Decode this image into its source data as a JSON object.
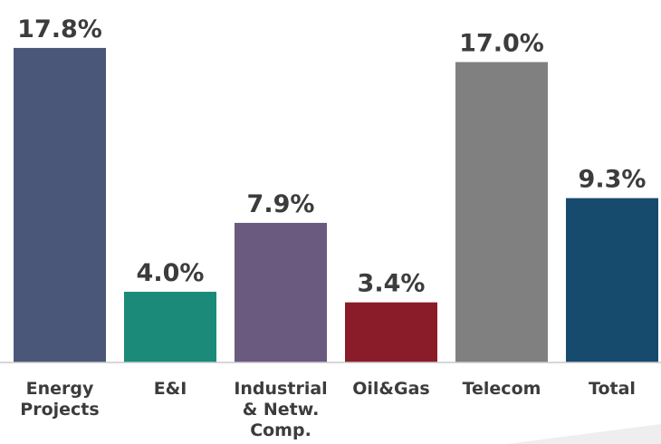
{
  "chart_data": {
    "type": "bar",
    "categories": [
      "Energy Projects",
      "E&I",
      "Industrial & Netw. Comp.",
      "Oil&Gas",
      "Telecom",
      "Total"
    ],
    "values": [
      17.8,
      4.0,
      7.9,
      3.4,
      17.0,
      9.3
    ],
    "value_labels": [
      "17.8%",
      "4.0%",
      "7.9%",
      "3.4%",
      "17.0%",
      "9.3%"
    ],
    "colors": [
      "#4a5778",
      "#1b8a79",
      "#6b5a80",
      "#8a1c29",
      "#808080",
      "#174b6e"
    ],
    "ylim": [
      0,
      18
    ]
  }
}
